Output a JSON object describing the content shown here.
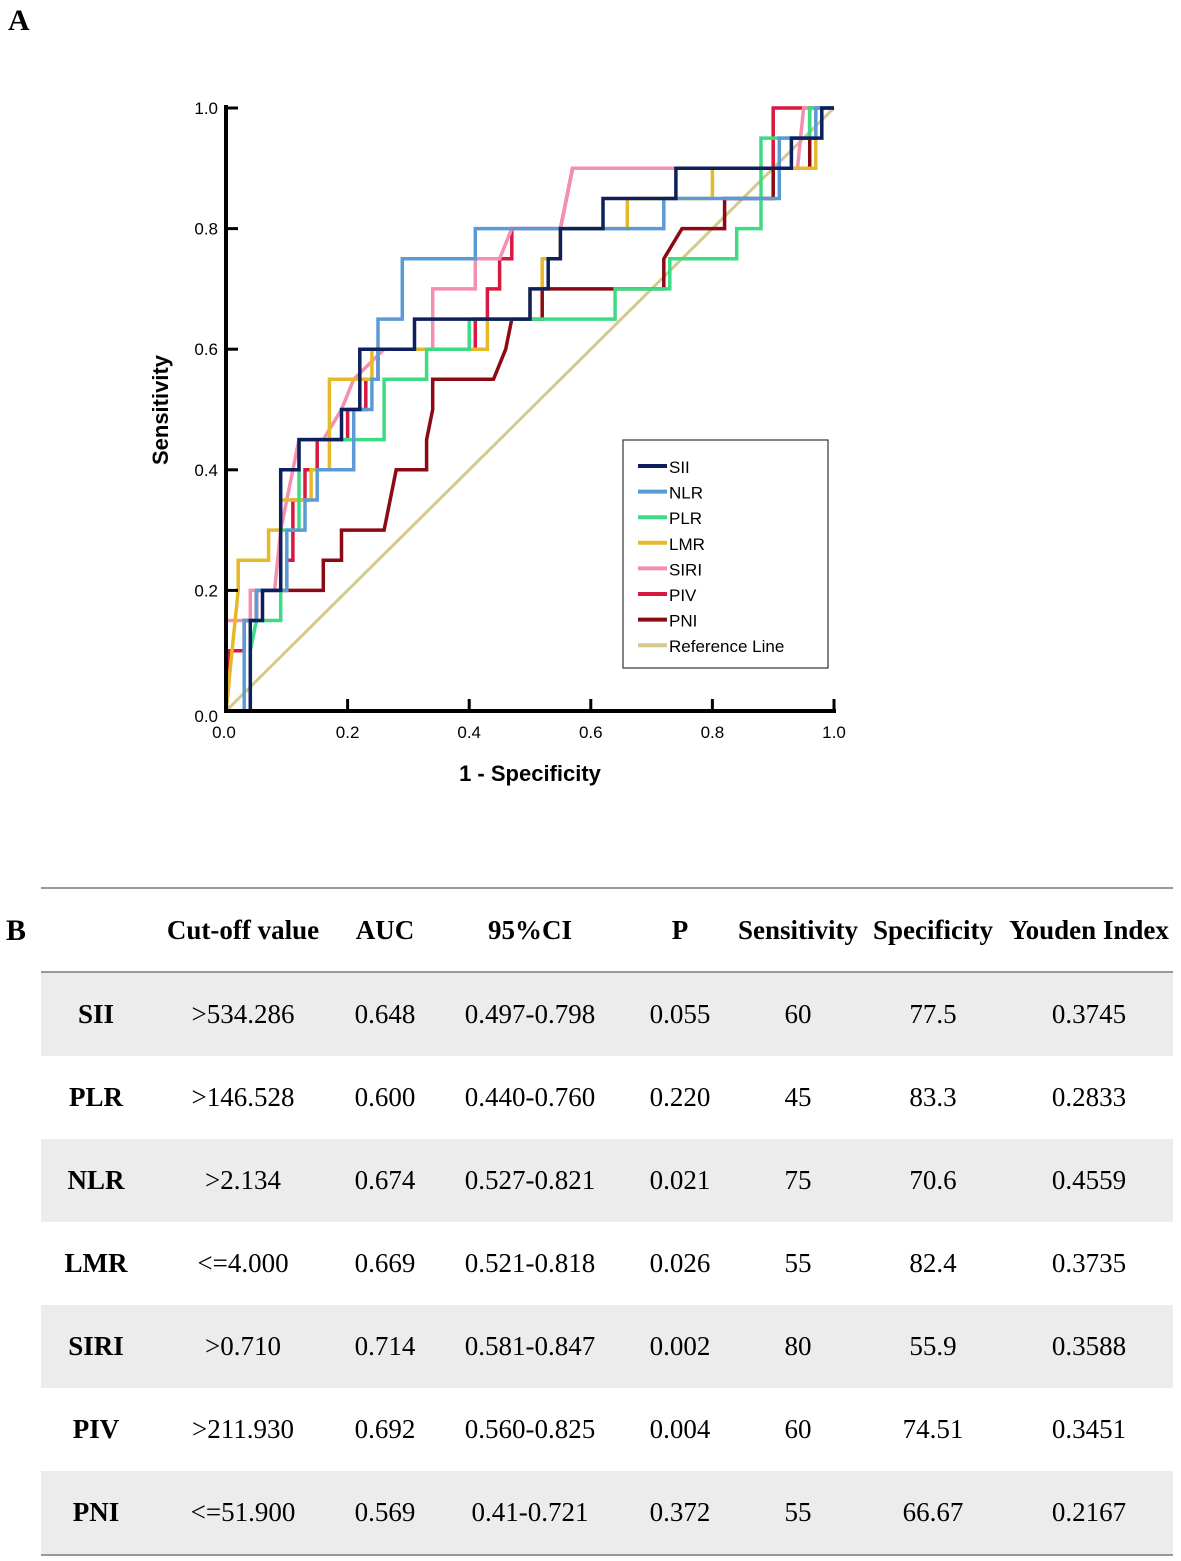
{
  "panels": {
    "a": "A",
    "b": "B"
  },
  "chart_data": {
    "type": "line",
    "title": "",
    "xlabel": "1 - Specificity",
    "ylabel": "Sensitivity",
    "xlim": [
      0,
      1
    ],
    "ylim": [
      0,
      1
    ],
    "xticks": [
      "0.0",
      "0.2",
      "0.4",
      "0.6",
      "0.8",
      "1.0"
    ],
    "yticks": [
      "0.0",
      "0.2",
      "0.4",
      "0.6",
      "0.8",
      "1.0"
    ],
    "grid": false,
    "legend_position": "bottom-right",
    "series": [
      {
        "name": "SII",
        "color": "#0d1f5c",
        "points": [
          [
            0,
            0
          ],
          [
            0.04,
            0
          ],
          [
            0.04,
            0.15
          ],
          [
            0.06,
            0.15
          ],
          [
            0.06,
            0.2
          ],
          [
            0.09,
            0.2
          ],
          [
            0.09,
            0.4
          ],
          [
            0.12,
            0.4
          ],
          [
            0.12,
            0.45
          ],
          [
            0.19,
            0.45
          ],
          [
            0.19,
            0.5
          ],
          [
            0.22,
            0.5
          ],
          [
            0.22,
            0.6
          ],
          [
            0.31,
            0.6
          ],
          [
            0.31,
            0.65
          ],
          [
            0.5,
            0.65
          ],
          [
            0.5,
            0.7
          ],
          [
            0.53,
            0.7
          ],
          [
            0.53,
            0.75
          ],
          [
            0.55,
            0.75
          ],
          [
            0.55,
            0.8
          ],
          [
            0.62,
            0.8
          ],
          [
            0.62,
            0.85
          ],
          [
            0.74,
            0.85
          ],
          [
            0.74,
            0.9
          ],
          [
            0.93,
            0.9
          ],
          [
            0.93,
            0.95
          ],
          [
            0.98,
            0.95
          ],
          [
            0.98,
            1
          ],
          [
            1,
            1
          ]
        ]
      },
      {
        "name": "NLR",
        "color": "#5b9bd5",
        "points": [
          [
            0,
            0
          ],
          [
            0.03,
            0
          ],
          [
            0.03,
            0.15
          ],
          [
            0.05,
            0.15
          ],
          [
            0.05,
            0.2
          ],
          [
            0.1,
            0.2
          ],
          [
            0.1,
            0.3
          ],
          [
            0.13,
            0.3
          ],
          [
            0.13,
            0.35
          ],
          [
            0.15,
            0.35
          ],
          [
            0.15,
            0.4
          ],
          [
            0.21,
            0.4
          ],
          [
            0.21,
            0.5
          ],
          [
            0.24,
            0.5
          ],
          [
            0.24,
            0.55
          ],
          [
            0.25,
            0.55
          ],
          [
            0.25,
            0.65
          ],
          [
            0.29,
            0.65
          ],
          [
            0.29,
            0.75
          ],
          [
            0.41,
            0.75
          ],
          [
            0.41,
            0.8
          ],
          [
            0.55,
            0.8
          ],
          [
            0.55,
            0.8
          ],
          [
            0.72,
            0.8
          ],
          [
            0.72,
            0.85
          ],
          [
            0.91,
            0.85
          ],
          [
            0.91,
            0.95
          ],
          [
            0.97,
            0.95
          ],
          [
            0.97,
            1
          ],
          [
            1,
            1
          ]
        ]
      },
      {
        "name": "PLR",
        "color": "#3ddc84",
        "points": [
          [
            0.04,
            0
          ],
          [
            0.04,
            0.1
          ],
          [
            0.05,
            0.15
          ],
          [
            0.09,
            0.15
          ],
          [
            0.09,
            0.3
          ],
          [
            0.12,
            0.3
          ],
          [
            0.12,
            0.45
          ],
          [
            0.26,
            0.45
          ],
          [
            0.26,
            0.55
          ],
          [
            0.33,
            0.55
          ],
          [
            0.33,
            0.6
          ],
          [
            0.4,
            0.6
          ],
          [
            0.4,
            0.65
          ],
          [
            0.64,
            0.65
          ],
          [
            0.64,
            0.7
          ],
          [
            0.73,
            0.7
          ],
          [
            0.73,
            0.75
          ],
          [
            0.84,
            0.75
          ],
          [
            0.84,
            0.8
          ],
          [
            0.88,
            0.8
          ],
          [
            0.88,
            0.95
          ],
          [
            0.96,
            0.95
          ],
          [
            0.96,
            1
          ],
          [
            1,
            1
          ]
        ]
      },
      {
        "name": "LMR",
        "color": "#e6b92a",
        "points": [
          [
            0,
            0
          ],
          [
            0.005,
            0.05
          ],
          [
            0.02,
            0.2
          ],
          [
            0.02,
            0.25
          ],
          [
            0.07,
            0.25
          ],
          [
            0.07,
            0.3
          ],
          [
            0.09,
            0.3
          ],
          [
            0.09,
            0.35
          ],
          [
            0.14,
            0.35
          ],
          [
            0.14,
            0.4
          ],
          [
            0.17,
            0.4
          ],
          [
            0.17,
            0.55
          ],
          [
            0.24,
            0.55
          ],
          [
            0.24,
            0.6
          ],
          [
            0.43,
            0.6
          ],
          [
            0.43,
            0.65
          ],
          [
            0.5,
            0.65
          ],
          [
            0.5,
            0.7
          ],
          [
            0.52,
            0.7
          ],
          [
            0.52,
            0.75
          ],
          [
            0.55,
            0.75
          ],
          [
            0.55,
            0.8
          ],
          [
            0.66,
            0.8
          ],
          [
            0.66,
            0.85
          ],
          [
            0.8,
            0.85
          ],
          [
            0.8,
            0.9
          ],
          [
            0.97,
            0.9
          ],
          [
            0.97,
            1
          ],
          [
            1,
            1
          ]
        ]
      },
      {
        "name": "SIRI",
        "color": "#f48fb1",
        "points": [
          [
            0,
            0.15
          ],
          [
            0.04,
            0.15
          ],
          [
            0.04,
            0.2
          ],
          [
            0.08,
            0.2
          ],
          [
            0.09,
            0.3
          ],
          [
            0.1,
            0.35
          ],
          [
            0.11,
            0.4
          ],
          [
            0.12,
            0.45
          ],
          [
            0.16,
            0.45
          ],
          [
            0.19,
            0.5
          ],
          [
            0.21,
            0.55
          ],
          [
            0.26,
            0.6
          ],
          [
            0.34,
            0.6
          ],
          [
            0.34,
            0.7
          ],
          [
            0.41,
            0.7
          ],
          [
            0.41,
            0.75
          ],
          [
            0.45,
            0.75
          ],
          [
            0.47,
            0.8
          ],
          [
            0.55,
            0.8
          ],
          [
            0.57,
            0.9
          ],
          [
            0.94,
            0.9
          ],
          [
            0.95,
            1
          ],
          [
            1,
            1
          ]
        ]
      },
      {
        "name": "PIV",
        "color": "#d7193f",
        "points": [
          [
            0,
            0.05
          ],
          [
            0.005,
            0.1
          ],
          [
            0.03,
            0.1
          ],
          [
            0.03,
            0.15
          ],
          [
            0.05,
            0.15
          ],
          [
            0.05,
            0.2
          ],
          [
            0.1,
            0.2
          ],
          [
            0.1,
            0.25
          ],
          [
            0.11,
            0.25
          ],
          [
            0.11,
            0.35
          ],
          [
            0.13,
            0.35
          ],
          [
            0.13,
            0.4
          ],
          [
            0.15,
            0.4
          ],
          [
            0.15,
            0.45
          ],
          [
            0.2,
            0.45
          ],
          [
            0.2,
            0.5
          ],
          [
            0.23,
            0.5
          ],
          [
            0.23,
            0.55
          ],
          [
            0.25,
            0.55
          ],
          [
            0.25,
            0.6
          ],
          [
            0.41,
            0.6
          ],
          [
            0.41,
            0.65
          ],
          [
            0.43,
            0.65
          ],
          [
            0.43,
            0.7
          ],
          [
            0.45,
            0.7
          ],
          [
            0.45,
            0.75
          ],
          [
            0.47,
            0.75
          ],
          [
            0.47,
            0.8
          ],
          [
            0.55,
            0.8
          ],
          [
            0.56,
            0.85
          ],
          [
            0.57,
            0.9
          ],
          [
            0.9,
            0.9
          ],
          [
            0.9,
            1
          ],
          [
            0.95,
            1
          ],
          [
            1,
            1
          ]
        ]
      },
      {
        "name": "PNI",
        "color": "#8b0a14",
        "points": [
          [
            0,
            0
          ],
          [
            0.005,
            0.05
          ],
          [
            0.005,
            0.1
          ],
          [
            0.03,
            0.1
          ],
          [
            0.03,
            0.15
          ],
          [
            0.05,
            0.15
          ],
          [
            0.05,
            0.2
          ],
          [
            0.16,
            0.2
          ],
          [
            0.16,
            0.25
          ],
          [
            0.19,
            0.25
          ],
          [
            0.19,
            0.3
          ],
          [
            0.26,
            0.3
          ],
          [
            0.28,
            0.4
          ],
          [
            0.33,
            0.4
          ],
          [
            0.33,
            0.45
          ],
          [
            0.34,
            0.5
          ],
          [
            0.34,
            0.55
          ],
          [
            0.44,
            0.55
          ],
          [
            0.46,
            0.6
          ],
          [
            0.47,
            0.65
          ],
          [
            0.52,
            0.65
          ],
          [
            0.52,
            0.7
          ],
          [
            0.72,
            0.7
          ],
          [
            0.72,
            0.75
          ],
          [
            0.75,
            0.8
          ],
          [
            0.82,
            0.8
          ],
          [
            0.82,
            0.85
          ],
          [
            0.9,
            0.85
          ],
          [
            0.9,
            0.9
          ],
          [
            0.96,
            0.9
          ],
          [
            0.96,
            1
          ],
          [
            1,
            1
          ]
        ]
      },
      {
        "name": "Reference Line",
        "color": "#d4c98f",
        "points": [
          [
            0,
            0
          ],
          [
            1,
            1
          ]
        ]
      }
    ]
  },
  "table": {
    "headers": [
      "",
      "Cut-off value",
      "AUC",
      "95%CI",
      "P",
      "Sensitivity",
      "Specificity",
      "Youden Index"
    ],
    "rows": [
      [
        "SII",
        ">534.286",
        "0.648",
        "0.497-0.798",
        "0.055",
        "60",
        "77.5",
        "0.3745"
      ],
      [
        "PLR",
        ">146.528",
        "0.600",
        "0.440-0.760",
        "0.220",
        "45",
        "83.3",
        "0.2833"
      ],
      [
        "NLR",
        ">2.134",
        "0.674",
        "0.527-0.821",
        "0.021",
        "75",
        "70.6",
        "0.4559"
      ],
      [
        "LMR",
        "<=4.000",
        "0.669",
        "0.521-0.818",
        "0.026",
        "55",
        "82.4",
        "0.3735"
      ],
      [
        "SIRI",
        ">0.710",
        "0.714",
        "0.581-0.847",
        "0.002",
        "80",
        "55.9",
        "0.3588"
      ],
      [
        "PIV",
        ">211.930",
        "0.692",
        "0.560-0.825",
        "0.004",
        "60",
        "74.51",
        "0.3451"
      ],
      [
        "PNI",
        "<=51.900",
        "0.569",
        "0.41-0.721",
        "0.372",
        "55",
        "66.67",
        "0.2167"
      ]
    ]
  }
}
